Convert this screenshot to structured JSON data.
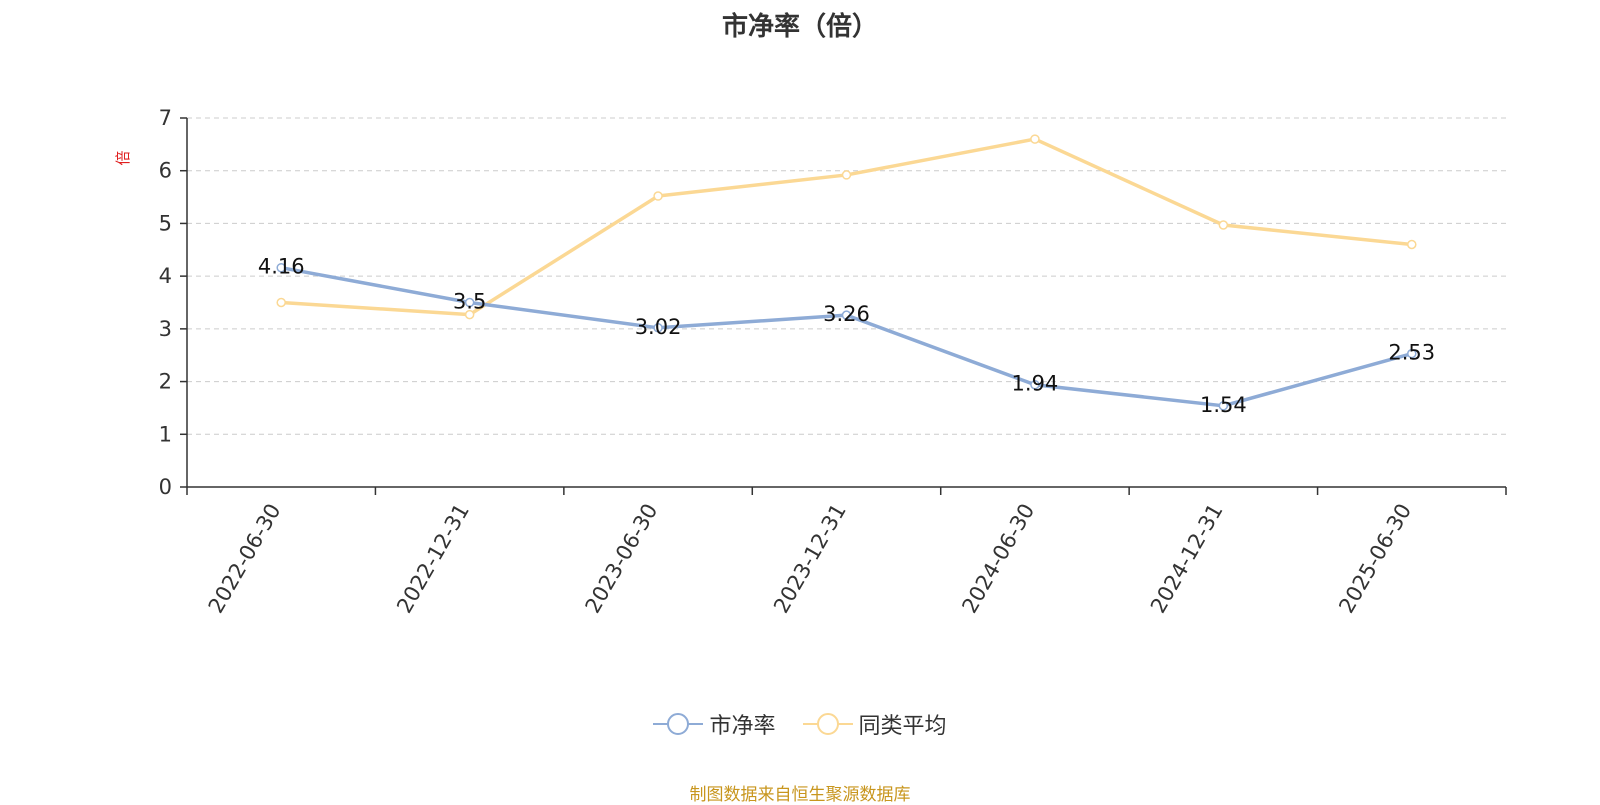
{
  "colors": {
    "series_pb": "#8eabd6",
    "series_avg": "#fbd894",
    "y_unit": "#e02020",
    "axis": "#333333",
    "grid": "#cccccc",
    "source": "#c8961e"
  },
  "chart_data": {
    "type": "line",
    "title": "市净率（倍）",
    "ylabel": "倍",
    "xlabel": "",
    "ylim": [
      0,
      7
    ],
    "yticks": [
      0,
      1,
      2,
      3,
      4,
      5,
      6,
      7
    ],
    "grid": true,
    "grid_style": "dashed",
    "legend_position": "bottom",
    "categories": [
      "2022-06-30",
      "2022-12-31",
      "2023-06-30",
      "2023-12-31",
      "2024-06-30",
      "2024-12-31",
      "2025-06-30"
    ],
    "series": [
      {
        "name": "市净率",
        "values": [
          4.16,
          3.5,
          3.02,
          3.26,
          1.94,
          1.54,
          2.53
        ],
        "labels": [
          "4.16",
          "3.5",
          "3.02",
          "3.26",
          "1.94",
          "1.54",
          "2.53"
        ],
        "data_labels": true
      },
      {
        "name": "同类平均",
        "values": [
          3.5,
          3.27,
          5.52,
          5.92,
          6.6,
          4.97,
          4.6
        ],
        "data_labels": false
      }
    ]
  },
  "source_note": "制图数据来自恒生聚源数据库"
}
